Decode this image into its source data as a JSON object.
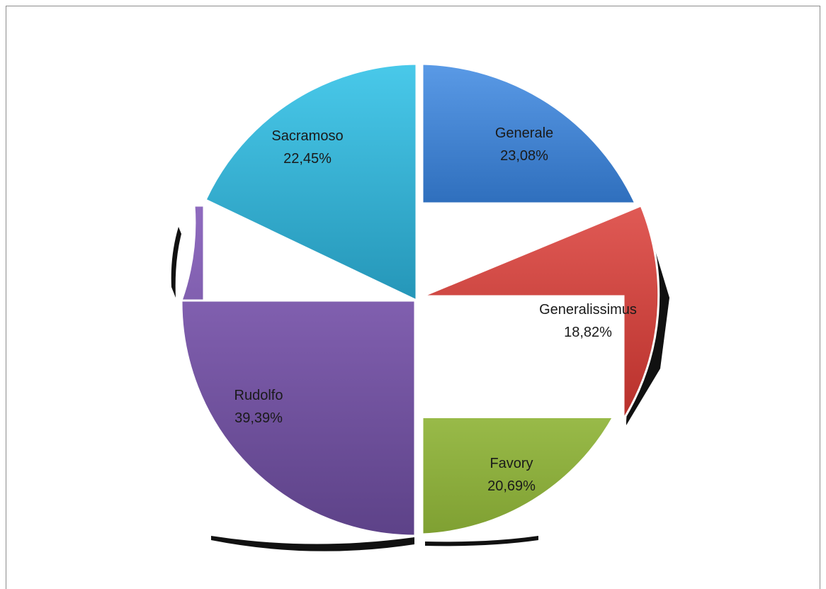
{
  "chart_data": {
    "type": "pie",
    "title": "",
    "legend": "none",
    "slices": [
      {
        "name": "Generale",
        "value": 23.08,
        "label": "23,08%",
        "color_top": "#5a9ae6",
        "color_bottom": "#2f6fbd"
      },
      {
        "name": "Generalissimus",
        "value": 18.82,
        "label": "18,82%",
        "color_top": "#e05a55",
        "color_bottom": "#b8302b"
      },
      {
        "name": "Favory",
        "value": 20.69,
        "label": "20,69%",
        "color_top": "#b2d45f",
        "color_bottom": "#7fa032"
      },
      {
        "name": "Rudolfo",
        "value": 39.39,
        "label": "39,39%",
        "color_top": "#8f6bbf",
        "color_bottom": "#5d4288"
      },
      {
        "name": "Sacramoso",
        "value": 22.45,
        "label": "22,45%",
        "color_top": "#49c9ea",
        "color_bottom": "#2596b8"
      }
    ]
  }
}
